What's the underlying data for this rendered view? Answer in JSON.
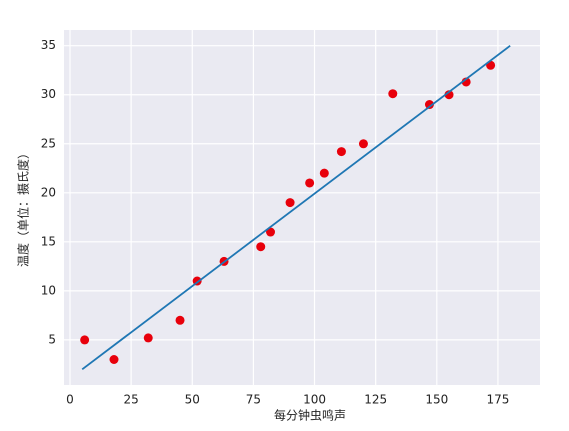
{
  "chart_data": {
    "type": "scatter",
    "x_label": "每分钟虫鸣声",
    "y_label": "温度（单位：摄氏度）",
    "xlim": [
      -2.45,
      192.2
    ],
    "ylim": [
      0.4,
      36.6
    ],
    "xticks": [
      0,
      25,
      50,
      75,
      100,
      125,
      150,
      175
    ],
    "yticks": [
      5,
      10,
      15,
      20,
      25,
      30,
      35
    ],
    "grid": true,
    "series": [
      {
        "type": "scatter",
        "color": "#e8000b",
        "x": [
          6,
          18,
          32,
          45,
          52,
          63,
          78,
          82,
          90,
          98,
          104,
          111,
          120,
          132,
          147,
          155,
          162,
          172
        ],
        "values": [
          5,
          3,
          5.2,
          7,
          11,
          13,
          14.5,
          16,
          19,
          21,
          22,
          24.2,
          25,
          30.1,
          29,
          30,
          31.3,
          33
        ]
      },
      {
        "type": "line",
        "color": "#1f77b4",
        "x": [
          5,
          180
        ],
        "values": [
          2,
          35
        ]
      }
    ]
  }
}
